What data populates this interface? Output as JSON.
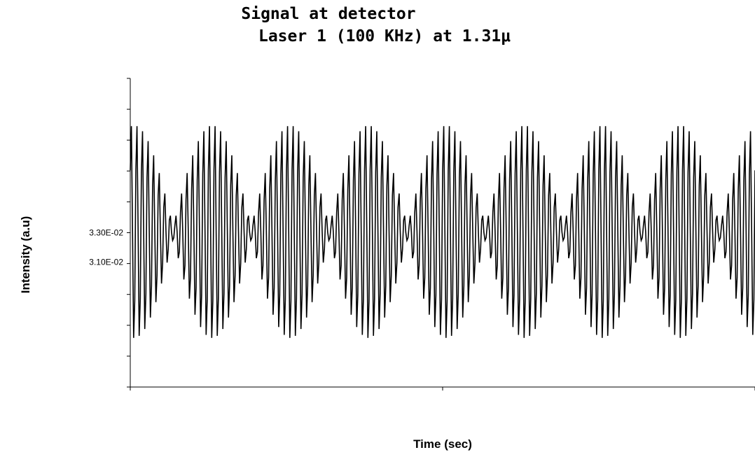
{
  "chart_data": {
    "type": "line",
    "title": "Signal at detector",
    "subtitle": "Laser 1 (100 KHz) at 1.31μ",
    "xlabel": "Time (sec)",
    "ylabel": "Intensity (a.u)",
    "ytick_labels": [
      {
        "label": "3.30E-02",
        "value": 0.033
      },
      {
        "label": "3.10E-02",
        "value": 0.031
      }
    ],
    "ylim": [
      0.0225,
      0.0435
    ],
    "xlim": [
      0,
      8
    ],
    "series": [
      {
        "style": "line",
        "color": "#000000",
        "signal": {
          "baseline": 0.033,
          "carrier_cycles_per_beat": 14,
          "beat_periods_visible": 8,
          "max_amplitude": 0.0076,
          "min_amplitude": 0.0004,
          "samples": 560
        }
      }
    ],
    "grid": false,
    "legend": "none"
  }
}
